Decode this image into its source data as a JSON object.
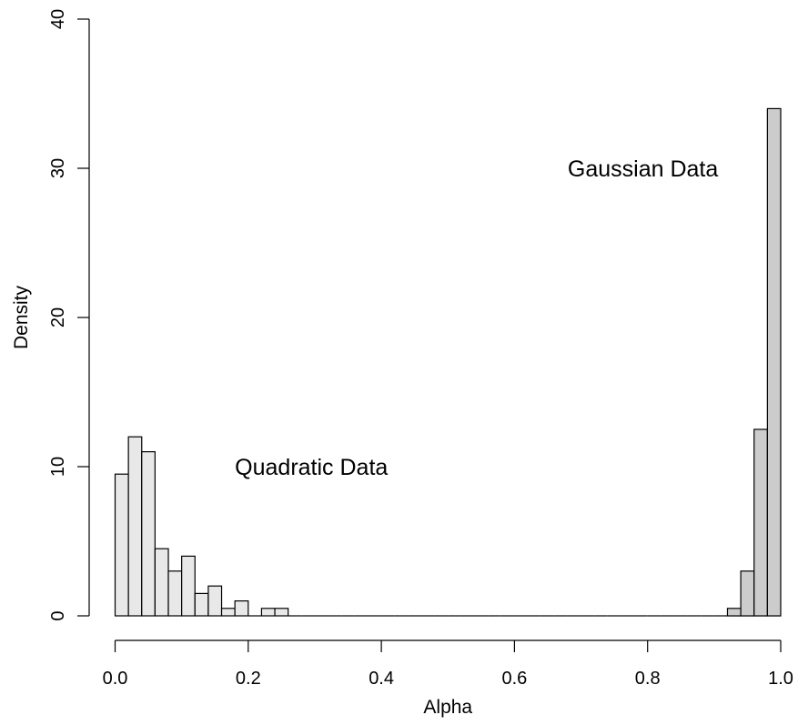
{
  "chart_data": {
    "type": "bar",
    "xlabel": "Alpha",
    "ylabel": "Density",
    "xlim": [
      0,
      1
    ],
    "ylim": [
      0,
      40
    ],
    "x_ticks": [
      "0.0",
      "0.2",
      "0.4",
      "0.6",
      "0.8",
      "1.0"
    ],
    "y_ticks": [
      "0",
      "10",
      "20",
      "30",
      "40"
    ],
    "bin_width": 0.02,
    "series": [
      {
        "name": "Quadratic Data",
        "color": "#e8e8e8",
        "bin_starts": [
          0.0,
          0.02,
          0.04,
          0.06,
          0.08,
          0.1,
          0.12,
          0.14,
          0.16,
          0.18,
          0.2,
          0.22,
          0.24,
          0.26,
          0.28,
          0.3,
          0.32,
          0.34,
          0.36,
          0.38,
          0.4,
          0.42,
          0.44,
          0.46,
          0.48,
          0.5,
          0.52,
          0.54,
          0.56,
          0.58,
          0.6,
          0.62,
          0.64,
          0.66,
          0.68,
          0.7,
          0.72,
          0.74,
          0.76,
          0.78,
          0.8,
          0.82,
          0.84,
          0.86,
          0.88,
          0.9,
          0.92,
          0.94,
          0.96,
          0.98
        ],
        "values": [
          9.5,
          12,
          11,
          4.5,
          3,
          4,
          1.5,
          2,
          0.5,
          1,
          0,
          0.5,
          0.5,
          0,
          0,
          0,
          0,
          0,
          0,
          0,
          0,
          0,
          0,
          0,
          0,
          0,
          0,
          0,
          0,
          0,
          0,
          0,
          0,
          0,
          0,
          0,
          0,
          0,
          0,
          0,
          0,
          0,
          0,
          0,
          0,
          0,
          0,
          0,
          0,
          0
        ]
      },
      {
        "name": "Gaussian Data",
        "color": "#cccccc",
        "bin_starts": [
          0.92,
          0.94,
          0.96,
          0.98
        ],
        "values": [
          0.5,
          3,
          12.5,
          34
        ]
      }
    ],
    "annotations": [
      {
        "text": "Quadratic Data",
        "x": 0.18,
        "y": 10
      },
      {
        "text": "Gaussian Data",
        "x": 0.68,
        "y": 30
      }
    ]
  }
}
